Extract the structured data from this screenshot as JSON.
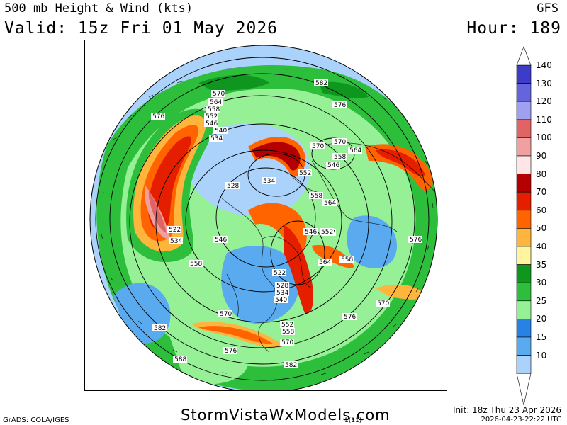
{
  "header": {
    "title": "500 mb Height & Wind (kts)",
    "valid": "Valid: 15z Fri 01 May 2026",
    "model": "GFS",
    "hour": "Hour: 189"
  },
  "legend": {
    "levels": [
      {
        "value": "140",
        "color": "#3c3cc8"
      },
      {
        "value": "130",
        "color": "#6464dc"
      },
      {
        "value": "120",
        "color": "#a0a0f0"
      },
      {
        "value": "110",
        "color": "#e06464"
      },
      {
        "value": "100",
        "color": "#f0a0a0"
      },
      {
        "value": "90",
        "color": "#ffe6e6"
      },
      {
        "value": "80",
        "color": "#b40000"
      },
      {
        "value": "70",
        "color": "#e61e00"
      },
      {
        "value": "60",
        "color": "#ff6400"
      },
      {
        "value": "50",
        "color": "#ffb43c"
      },
      {
        "value": "40",
        "color": "#fff5a0"
      },
      {
        "value": "35",
        "color": "#0f961e"
      },
      {
        "value": "30",
        "color": "#2dbe3c"
      },
      {
        "value": "25",
        "color": "#96f096"
      },
      {
        "value": "20",
        "color": "#2882e6"
      },
      {
        "value": "15",
        "color": "#5aaaf0"
      },
      {
        "value": "10",
        "color": "#aad2fa"
      }
    ]
  },
  "map": {
    "height_labels": [
      "570",
      "564",
      "558",
      "552",
      "546",
      "540",
      "534",
      "576",
      "582",
      "570",
      "576",
      "570",
      "564",
      "558",
      "546",
      "552",
      "558",
      "564",
      "528",
      "534",
      "522",
      "534",
      "546",
      "552",
      "558",
      "546",
      "552",
      "558",
      "564",
      "522",
      "528",
      "534",
      "540",
      "576",
      "570",
      "576",
      "582",
      "570",
      "576",
      "588",
      "552",
      "558",
      "570",
      "582"
    ]
  },
  "footer": {
    "site": "StormVistaWxModels.com",
    "init": "Init: 18z Thu 23 Apr 2026",
    "stamp": "2026-04-23-22:22 UTC",
    "grads": "GrADS: COLA/IGES",
    "tick": "1(11)"
  }
}
